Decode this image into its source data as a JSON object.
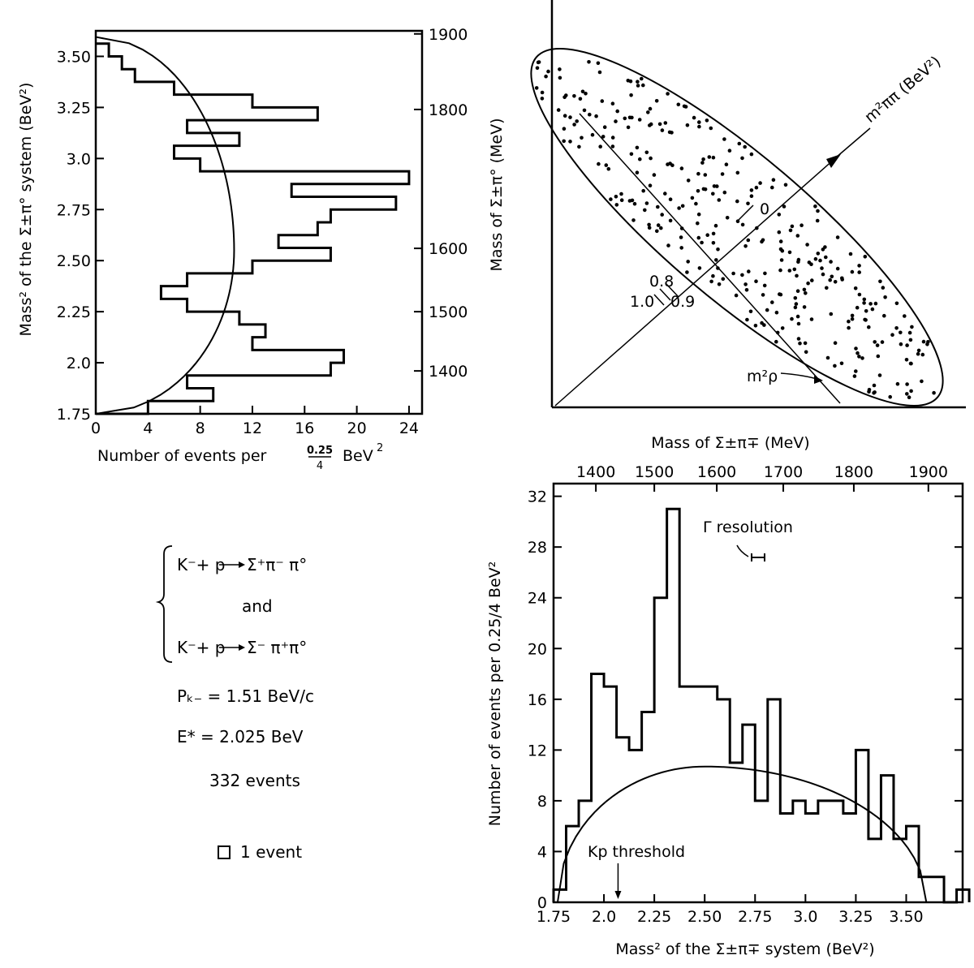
{
  "chart_data": [
    {
      "id": "left",
      "type": "bar",
      "orientation": "horizontal",
      "xlabel_prefix": "Number of events per",
      "xlabel_frac_num": "0.25",
      "xlabel_frac_den": "4",
      "xlabel_unit": "BeV",
      "ylabel": "Mass² of the Σ±π° system (BeV²)",
      "ylabel_right": "Mass of Σ±π° (MeV)",
      "xlim": [
        0,
        25
      ],
      "ylim": [
        1.75,
        3.625
      ],
      "x_ticks": [
        "0",
        "4",
        "8",
        "12",
        "16",
        "20",
        "24"
      ],
      "y_ticks": [
        "1.75",
        "2.0",
        "2.25",
        "2.50",
        "2.75",
        "3.0",
        "3.25",
        "3.50"
      ],
      "y_right_ticks": [
        "1400",
        "1500",
        "1600",
        "1800",
        "1900"
      ],
      "bin_width": 0.0625,
      "bins": [
        {
          "start": 1.75,
          "value": 4
        },
        {
          "start": 1.8125,
          "value": 9
        },
        {
          "start": 1.875,
          "value": 7
        },
        {
          "start": 1.9375,
          "value": 18
        },
        {
          "start": 2.0,
          "value": 19
        },
        {
          "start": 2.0625,
          "value": 12
        },
        {
          "start": 2.125,
          "value": 13
        },
        {
          "start": 2.1875,
          "value": 11
        },
        {
          "start": 2.25,
          "value": 7
        },
        {
          "start": 2.3125,
          "value": 5
        },
        {
          "start": 2.375,
          "value": 7
        },
        {
          "start": 2.4375,
          "value": 12
        },
        {
          "start": 2.5,
          "value": 18
        },
        {
          "start": 2.5625,
          "value": 14
        },
        {
          "start": 2.625,
          "value": 17
        },
        {
          "start": 2.6875,
          "value": 18
        },
        {
          "start": 2.75,
          "value": 23
        },
        {
          "start": 2.8125,
          "value": 15
        },
        {
          "start": 2.875,
          "value": 24
        },
        {
          "start": 2.9375,
          "value": 8
        },
        {
          "start": 3.0,
          "value": 6
        },
        {
          "start": 3.0625,
          "value": 11
        },
        {
          "start": 3.125,
          "value": 7
        },
        {
          "start": 3.1875,
          "value": 17
        },
        {
          "start": 3.25,
          "value": 12
        },
        {
          "start": 3.3125,
          "value": 6
        },
        {
          "start": 3.375,
          "value": 3
        },
        {
          "start": 3.4375,
          "value": 2
        },
        {
          "start": 3.5,
          "value": 1
        }
      ],
      "phase_space_peak": {
        "y": 2.55,
        "x": 10.6
      }
    },
    {
      "id": "scatter",
      "type": "scatter",
      "axis_label": "m²ππ (BeV²)",
      "axis_ticks": [
        "0",
        "0.8",
        "0.9",
        "1.0"
      ],
      "rho_label": "m²ρ",
      "n_points": 332
    },
    {
      "id": "bottom",
      "type": "bar",
      "orientation": "vertical",
      "xlabel": "Mass² of the Σ±π∓ system (BeV²)",
      "ylabel": "Number of events per 0.25/4 BeV²",
      "top_label": "Mass of Σ±π∓ (MeV)",
      "xlim": [
        1.75,
        3.78
      ],
      "ylim": [
        0,
        33
      ],
      "x_ticks": [
        "1.75",
        "2.0",
        "2.25",
        "2.50",
        "2.75",
        "3.0",
        "3.25",
        "3.50"
      ],
      "y_ticks": [
        "0",
        "4",
        "8",
        "12",
        "16",
        "20",
        "24",
        "28",
        "32"
      ],
      "top_ticks": [
        "1400",
        "1500",
        "1600",
        "1700",
        "1800",
        "1900"
      ],
      "bin_width": 0.0625,
      "bins": [
        {
          "start": 1.75,
          "value": 1
        },
        {
          "start": 1.8125,
          "value": 6
        },
        {
          "start": 1.875,
          "value": 8
        },
        {
          "start": 1.9375,
          "value": 18
        },
        {
          "start": 2.0,
          "value": 17
        },
        {
          "start": 2.0625,
          "value": 13
        },
        {
          "start": 2.125,
          "value": 12
        },
        {
          "start": 2.1875,
          "value": 15
        },
        {
          "start": 2.25,
          "value": 24
        },
        {
          "start": 2.3125,
          "value": 31
        },
        {
          "start": 2.375,
          "value": 17
        },
        {
          "start": 2.4375,
          "value": 17
        },
        {
          "start": 2.5,
          "value": 17
        },
        {
          "start": 2.5625,
          "value": 16
        },
        {
          "start": 2.625,
          "value": 11
        },
        {
          "start": 2.6875,
          "value": 14
        },
        {
          "start": 2.75,
          "value": 8
        },
        {
          "start": 2.8125,
          "value": 16
        },
        {
          "start": 2.875,
          "value": 7
        },
        {
          "start": 2.9375,
          "value": 8
        },
        {
          "start": 3.0,
          "value": 7
        },
        {
          "start": 3.0625,
          "value": 8
        },
        {
          "start": 3.125,
          "value": 8
        },
        {
          "start": 3.1875,
          "value": 7
        },
        {
          "start": 3.25,
          "value": 12
        },
        {
          "start": 3.3125,
          "value": 5
        },
        {
          "start": 3.375,
          "value": 10
        },
        {
          "start": 3.4375,
          "value": 5
        },
        {
          "start": 3.5,
          "value": 6
        },
        {
          "start": 3.5625,
          "value": 2
        },
        {
          "start": 3.625,
          "value": 2
        },
        {
          "start": 3.6875,
          "value": 0
        },
        {
          "start": 3.75,
          "value": 1
        }
      ],
      "phase_space_peak": {
        "x": 2.5,
        "y": 10.7
      },
      "annotations": {
        "resolution": "Γ resolution",
        "threshold": "Kp threshold",
        "threshold_x": 2.07
      }
    }
  ],
  "info": {
    "reaction1_lhs": "K⁻+ p",
    "reaction1_rhs": "Σ⁺π⁻ π°",
    "and_label": "and",
    "reaction2_lhs": "K⁻+ p",
    "reaction2_rhs": "Σ⁻ π⁺π°",
    "momentum": "Pₖ₋ = 1.51 BeV/c",
    "energy": "E* = 2.025 BeV",
    "events": "332 events",
    "legend_event": "1 event"
  }
}
